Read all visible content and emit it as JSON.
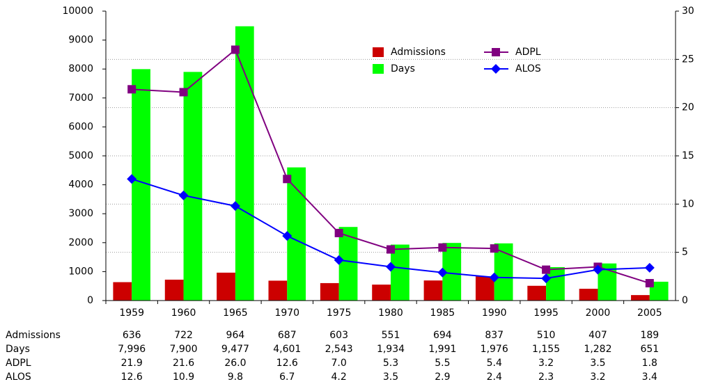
{
  "chart_data": {
    "type": "bar",
    "categories": [
      "1959",
      "1960",
      "1965",
      "1970",
      "1975",
      "1980",
      "1985",
      "1990",
      "1995",
      "2000",
      "2005"
    ],
    "series": [
      {
        "name": "Admissions",
        "color": "#cc0000",
        "values": [
          636,
          722,
          964,
          687,
          603,
          551,
          694,
          837,
          510,
          407,
          189
        ]
      },
      {
        "name": "Days",
        "color": "#00ff00",
        "values": [
          7996,
          7900,
          9477,
          4601,
          2543,
          1934,
          1991,
          1976,
          1155,
          1282,
          651
        ],
        "value_labels": [
          "7,996",
          "7,900",
          "9,477",
          "4,601",
          "2,543",
          "1,934",
          "1,991",
          "1,976",
          "1,155",
          "1,282",
          "651"
        ]
      },
      {
        "name": "ADPL",
        "type": "line",
        "axis": "y2",
        "marker": "square",
        "color": "#800080",
        "values": [
          21.9,
          21.6,
          26.0,
          12.6,
          7.0,
          5.3,
          5.5,
          5.4,
          3.2,
          3.5,
          1.8
        ],
        "value_labels": [
          "21.9",
          "21.6",
          "26.0",
          "12.6",
          "7.0",
          "5.3",
          "5.5",
          "5.4",
          "3.2",
          "3.5",
          "1.8"
        ]
      },
      {
        "name": "ALOS",
        "type": "line",
        "axis": "y2",
        "marker": "diamond",
        "color": "#0000ff",
        "values": [
          12.6,
          10.9,
          9.8,
          6.7,
          4.2,
          3.5,
          2.9,
          2.4,
          2.3,
          3.2,
          3.4
        ]
      }
    ],
    "ylim": [
      0,
      10000
    ],
    "yticks": [
      0,
      1000,
      2000,
      3000,
      4000,
      5000,
      6000,
      7000,
      8000,
      9000,
      10000
    ],
    "y2lim": [
      0,
      30
    ],
    "y2ticks": [
      0,
      5,
      10,
      15,
      20,
      25,
      30
    ],
    "grid": "y2",
    "data_table": true
  }
}
